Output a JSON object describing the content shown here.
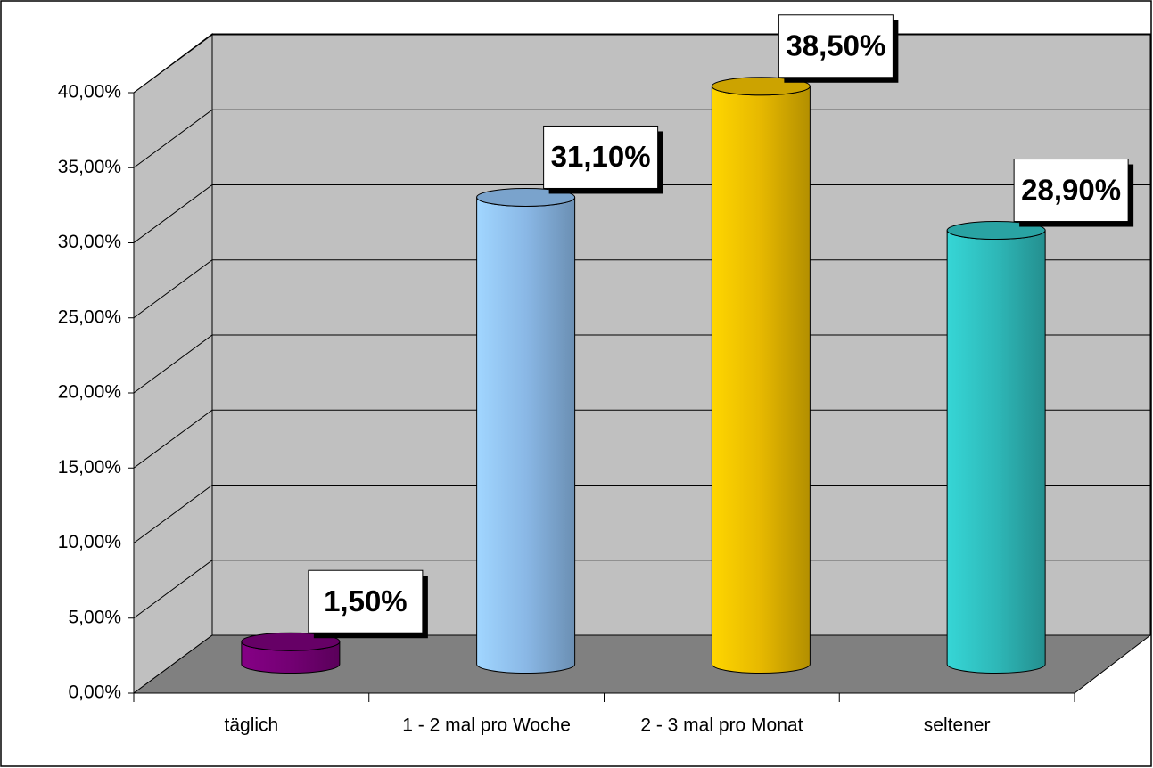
{
  "chart_data": {
    "type": "bar",
    "categories": [
      "täglich",
      "1 - 2 mal pro Woche",
      "2 - 3 mal pro Monat",
      "seltener"
    ],
    "values": [
      1.5,
      31.1,
      38.5,
      28.9
    ],
    "value_labels": [
      "1,50%",
      "31,10%",
      "38,50%",
      "28,90%"
    ],
    "colors": [
      "#800080",
      "#99ccff",
      "#ffcc00",
      "#33cccc"
    ],
    "ylim": [
      0,
      40
    ],
    "yticks": [
      {
        "value": 0,
        "label": "0,00%"
      },
      {
        "value": 5,
        "label": "5,00%"
      },
      {
        "value": 10,
        "label": "10,00%"
      },
      {
        "value": 15,
        "label": "15,00%"
      },
      {
        "value": 20,
        "label": "20,00%"
      },
      {
        "value": 25,
        "label": "25,00%"
      },
      {
        "value": 30,
        "label": "30,00%"
      },
      {
        "value": 35,
        "label": "35,00%"
      },
      {
        "value": 40,
        "label": "40,00%"
      }
    ],
    "grid": true
  }
}
